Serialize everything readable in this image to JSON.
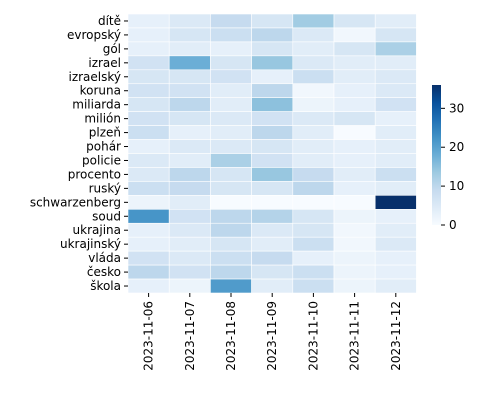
{
  "chart_data": {
    "type": "heatmap",
    "title": "",
    "xlabel": "",
    "ylabel": "",
    "x": [
      "2023-11-06",
      "2023-11-07",
      "2023-11-08",
      "2023-11-09",
      "2023-11-10",
      "2023-11-11",
      "2023-11-12"
    ],
    "y": [
      "dítě",
      "evropský",
      "gól",
      "izrael",
      "izraelský",
      "koruna",
      "miliarda",
      "milión",
      "plzeň",
      "pohár",
      "policie",
      "procento",
      "ruský",
      "schwarzenberg",
      "soud",
      "ukrajina",
      "ukrajinský",
      "vláda",
      "česko",
      "škola"
    ],
    "values": [
      [
        3,
        5,
        9,
        6,
        13,
        6,
        4
      ],
      [
        3,
        6,
        8,
        10,
        5,
        1,
        6
      ],
      [
        3,
        4,
        3,
        6,
        4,
        6,
        12
      ],
      [
        7,
        18,
        6,
        14,
        5,
        4,
        4
      ],
      [
        6,
        6,
        7,
        3,
        8,
        4,
        5
      ],
      [
        7,
        7,
        4,
        10,
        1,
        3,
        5
      ],
      [
        6,
        10,
        4,
        15,
        2,
        3,
        7
      ],
      [
        7,
        6,
        5,
        7,
        5,
        6,
        3
      ],
      [
        8,
        3,
        4,
        10,
        4,
        0,
        4
      ],
      [
        3,
        5,
        5,
        6,
        4,
        3,
        4
      ],
      [
        5,
        4,
        12,
        7,
        4,
        3,
        4
      ],
      [
        5,
        10,
        6,
        14,
        9,
        4,
        8
      ],
      [
        8,
        9,
        6,
        6,
        10,
        3,
        4
      ],
      [
        2,
        4,
        0,
        0,
        0,
        0,
        36
      ],
      [
        22,
        7,
        10,
        11,
        6,
        2,
        3
      ],
      [
        3,
        5,
        10,
        5,
        6,
        1,
        4
      ],
      [
        3,
        4,
        6,
        4,
        8,
        1,
        5
      ],
      [
        7,
        5,
        8,
        9,
        3,
        2,
        3
      ],
      [
        10,
        7,
        10,
        6,
        8,
        2,
        3
      ],
      [
        3,
        2,
        21,
        4,
        8,
        2,
        4
      ]
    ],
    "colorbar": {
      "min": 0,
      "max": 36,
      "ticks": [
        0,
        10,
        20,
        30
      ]
    },
    "colormap": [
      "#f7fbff",
      "#deebf7",
      "#c6dbef",
      "#9ecae1",
      "#6baed6",
      "#4292c6",
      "#2171b5",
      "#08519c",
      "#08306b"
    ],
    "grid": false,
    "legend": "colorbar-right"
  }
}
